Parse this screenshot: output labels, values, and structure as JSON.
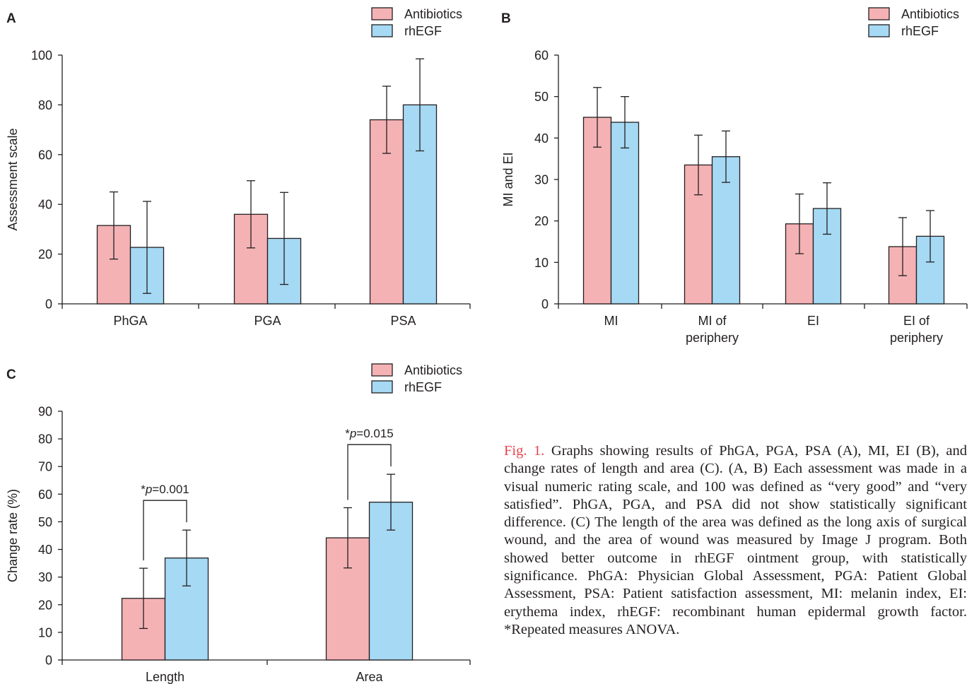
{
  "chart_data": [
    {
      "panel": "A",
      "type": "bar",
      "ylabel": "Assessment scale",
      "ylim": [
        0,
        100
      ],
      "yticks": [
        0,
        20,
        40,
        60,
        80,
        100
      ],
      "categories": [
        "PhGA",
        "PGA",
        "PSA"
      ],
      "series": [
        {
          "name": "Antibiotics",
          "color": "#f4b2b5",
          "values": [
            31.5,
            36,
            74
          ],
          "errors": [
            13.5,
            13.5,
            13.5
          ]
        },
        {
          "name": "rhEGF",
          "color": "#a5d9f4",
          "values": [
            22.7,
            26.3,
            80
          ],
          "errors": [
            18.5,
            18.5,
            18.5
          ]
        }
      ],
      "legend": "top-right"
    },
    {
      "panel": "B",
      "type": "bar",
      "ylabel": "MI and EI",
      "ylim": [
        0,
        60
      ],
      "yticks": [
        0,
        10,
        20,
        30,
        40,
        50,
        60
      ],
      "categories": [
        "MI",
        "MI of\nperiphery",
        "EI",
        "EI of\nperiphery"
      ],
      "series": [
        {
          "name": "Antibiotics",
          "color": "#f4b2b5",
          "values": [
            45,
            33.5,
            19.3,
            13.8
          ],
          "errors": [
            7.2,
            7.2,
            7.2,
            7.0
          ]
        },
        {
          "name": "rhEGF",
          "color": "#a5d9f4",
          "values": [
            43.8,
            35.5,
            23,
            16.3
          ],
          "errors": [
            6.2,
            6.2,
            6.2,
            6.2
          ]
        }
      ],
      "legend": "top-right"
    },
    {
      "panel": "C",
      "type": "bar",
      "ylabel": "Change rate (%)",
      "ylim": [
        0,
        90
      ],
      "yticks": [
        0,
        10,
        20,
        30,
        40,
        50,
        60,
        70,
        80,
        90
      ],
      "categories": [
        "Length",
        "Area"
      ],
      "series": [
        {
          "name": "Antibiotics",
          "color": "#f4b2b5",
          "values": [
            22.3,
            44.2
          ],
          "errors": [
            10.9,
            10.9
          ]
        },
        {
          "name": "rhEGF",
          "color": "#a5d9f4",
          "values": [
            36.9,
            57.1
          ],
          "errors": [
            10.1,
            10.1
          ]
        }
      ],
      "annotations": [
        {
          "category": "Length",
          "prefix": "*",
          "p_label": "p",
          "value_text": "=0.001"
        },
        {
          "category": "Area",
          "prefix": "*",
          "p_label": "p",
          "value_text": "=0.015"
        }
      ],
      "legend": "top-right"
    }
  ],
  "caption": {
    "label": "Fig. 1.",
    "text": " Graphs showing results of PhGA, PGA, PSA (A), MI, EI (B), and change rates of length and area (C). (A, B) Each assessment was made in a visual numeric rating scale, and 100 was defined as “very good” and “very satisfied”. PhGA, PGA, and PSA did not show statistically significant difference. (C) The length of the area was defined as the long axis of surgical wound, and the area of wound was measured by Image J program. Both showed better outcome in rhEGF ointment group, with statistically significance. PhGA: Physician Global Assessment, PGA: Patient Global Assessment, PSA: Patient satisfaction assessment, MI: melanin index, EI: erythema index, rhEGF: recombinant human epidermal growth factor. *Repeated measures ANOVA."
  }
}
